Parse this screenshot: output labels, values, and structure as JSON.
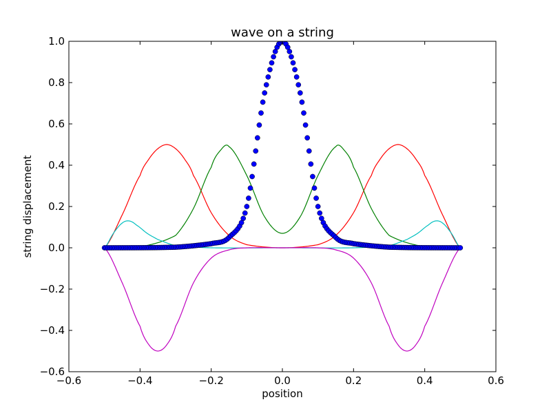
{
  "chart_data": {
    "type": "line",
    "title": "wave on a string",
    "xlabel": "position",
    "ylabel": "string displacement",
    "xlim": [
      -0.6,
      0.6
    ],
    "ylim": [
      -0.6,
      1.0
    ],
    "xticks": [
      -0.6,
      -0.4,
      -0.2,
      0.0,
      0.2,
      0.4,
      0.6
    ],
    "yticks": [
      -0.6,
      -0.4,
      -0.2,
      0.0,
      0.2,
      0.4,
      0.6,
      0.8,
      1.0
    ],
    "xtick_labels": [
      "−0.6",
      "−0.4",
      "−0.2",
      "0.0",
      "0.2",
      "0.4",
      "0.6"
    ],
    "ytick_labels": [
      "−0.6",
      "−0.4",
      "−0.2",
      "0.0",
      "0.2",
      "0.4",
      "0.6",
      "0.8",
      "1.0"
    ],
    "grid": false,
    "legend": "none",
    "series": [
      {
        "style": "line",
        "color": "#ff0000",
        "x": [
          -0.5,
          -0.45,
          -0.4,
          -0.375,
          -0.35,
          -0.325,
          -0.3,
          -0.275,
          -0.25,
          -0.2,
          -0.15,
          -0.1,
          0.0,
          0.1,
          0.15,
          0.2,
          0.25,
          0.275,
          0.3,
          0.325,
          0.35,
          0.375,
          0.4,
          0.45,
          0.5
        ],
        "y": [
          0.0,
          0.16,
          0.35,
          0.43,
          0.48,
          0.5,
          0.48,
          0.43,
          0.35,
          0.17,
          0.06,
          0.015,
          0.0,
          0.015,
          0.06,
          0.17,
          0.35,
          0.43,
          0.48,
          0.5,
          0.48,
          0.43,
          0.35,
          0.16,
          0.0
        ]
      },
      {
        "style": "line",
        "color": "#008000",
        "x": [
          -0.5,
          -0.4,
          -0.3,
          -0.25,
          -0.2,
          -0.175,
          -0.15,
          -0.1,
          -0.05,
          0.0,
          0.05,
          0.1,
          0.15,
          0.175,
          0.2,
          0.25,
          0.3,
          0.4,
          0.5
        ],
        "y": [
          0.0,
          0.005,
          0.06,
          0.19,
          0.39,
          0.47,
          0.49,
          0.35,
          0.15,
          0.07,
          0.15,
          0.35,
          0.49,
          0.47,
          0.39,
          0.19,
          0.06,
          0.005,
          0.0
        ],
        "note": ""
      },
      {
        "style": "line",
        "color": "#00bfbf",
        "x": [
          -0.5,
          -0.475,
          -0.45,
          -0.43,
          -0.41,
          -0.38,
          -0.35,
          -0.3,
          -0.2,
          0.0,
          0.2,
          0.3,
          0.35,
          0.38,
          0.41,
          0.43,
          0.45,
          0.475,
          0.5
        ],
        "y": [
          0.0,
          0.07,
          0.12,
          0.13,
          0.11,
          0.07,
          0.04,
          0.01,
          0.0,
          0.0,
          0.0,
          0.01,
          0.04,
          0.07,
          0.11,
          0.13,
          0.12,
          0.07,
          0.0
        ]
      },
      {
        "style": "line",
        "color": "#bf00bf",
        "x": [
          -0.5,
          -0.45,
          -0.4,
          -0.375,
          -0.35,
          -0.325,
          -0.3,
          -0.25,
          -0.2,
          -0.15,
          -0.1,
          0.0,
          0.1,
          0.15,
          0.2,
          0.25,
          0.3,
          0.325,
          0.35,
          0.375,
          0.4,
          0.45,
          0.5
        ],
        "y": [
          0.0,
          -0.17,
          -0.38,
          -0.47,
          -0.5,
          -0.47,
          -0.38,
          -0.17,
          -0.05,
          -0.01,
          0.0,
          0.0,
          0.0,
          -0.01,
          -0.05,
          -0.17,
          -0.38,
          -0.47,
          -0.5,
          -0.47,
          -0.38,
          -0.17,
          0.0
        ]
      },
      {
        "style": "markers",
        "color": "#0000ff",
        "x_range": [
          -0.5,
          0.5
        ],
        "num_points": 201,
        "peak": 1.0,
        "y_samples": {
          "x": [
            -0.5,
            -0.3,
            -0.2,
            -0.15,
            -0.1,
            -0.05,
            0.0,
            0.05,
            0.1,
            0.15,
            0.2,
            0.3,
            0.5
          ],
          "y": [
            0.0,
            0.003,
            0.02,
            0.05,
            0.2,
            0.75,
            1.0,
            0.75,
            0.2,
            0.05,
            0.02,
            0.003,
            0.0
          ]
        }
      }
    ]
  }
}
